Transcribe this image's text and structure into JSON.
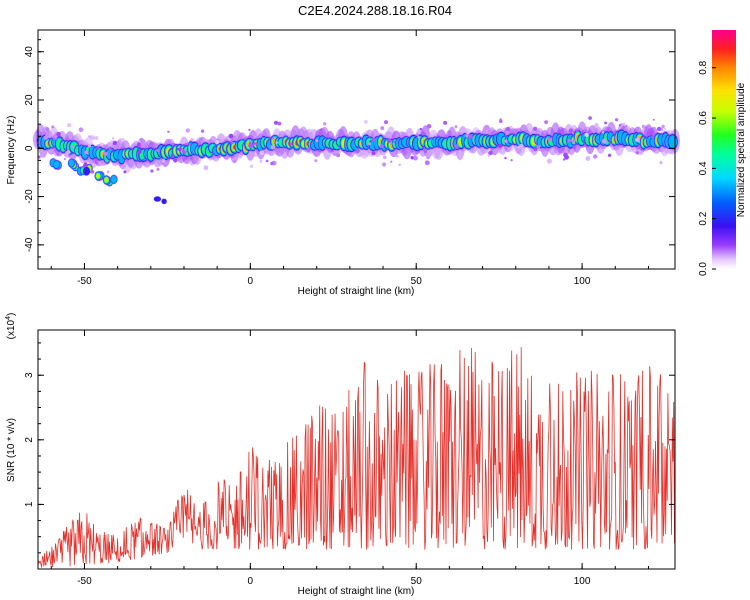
{
  "title": "C2E4.2024.288.18.16.R04",
  "chart_data": [
    {
      "type": "heatmap",
      "xlabel": "Height of straight line (km)",
      "ylabel": "Frequency (Hz)",
      "xlim": [
        -64,
        128
      ],
      "ylim": [
        -50,
        49
      ],
      "xticks": [
        -50,
        0,
        50,
        100
      ],
      "yticks": [
        -40,
        -20,
        0,
        20,
        40
      ],
      "colorbar": {
        "label": "Normalized spectral amplitude",
        "range": [
          0,
          0.95
        ],
        "ticks": [
          "0.0",
          "0.2",
          "0.4",
          "0.6",
          "0.8"
        ]
      },
      "ridge": {
        "description_points_km_hz": [
          [
            -63,
            3
          ],
          [
            -55,
            1
          ],
          [
            -50,
            -1
          ],
          [
            -45,
            -3
          ],
          [
            -40,
            -3
          ],
          [
            -30,
            -2
          ],
          [
            -20,
            -1
          ],
          [
            -10,
            -0.5
          ],
          [
            0,
            1
          ],
          [
            10,
            2.5
          ],
          [
            20,
            2
          ],
          [
            30,
            2
          ],
          [
            40,
            2
          ],
          [
            50,
            2
          ],
          [
            60,
            2.5
          ],
          [
            70,
            3
          ],
          [
            80,
            3.5
          ],
          [
            90,
            3
          ],
          [
            100,
            4
          ],
          [
            110,
            4
          ],
          [
            120,
            3
          ],
          [
            128,
            3
          ]
        ],
        "branch_points_km_hz": [
          [
            -58,
            -6
          ],
          [
            -54,
            -7
          ],
          [
            -50,
            -9
          ],
          [
            -46,
            -11
          ],
          [
            -42,
            -13
          ]
        ],
        "isolated_km_hz": [
          [
            -28,
            -21
          ]
        ]
      }
    },
    {
      "type": "line",
      "xlabel": "Height of straight line (km)",
      "ylabel": "SNR (10 * v/v)",
      "y_multiplier": "(x10",
      "y_multiplier_exp": "4",
      "y_multiplier_close": ")",
      "xlim": [
        -64,
        128
      ],
      "ylim": [
        0,
        3.7
      ],
      "xticks": [
        -50,
        0,
        50,
        100
      ],
      "yticks": [
        1,
        2,
        3
      ],
      "color": "#e8302a",
      "envelope_km_snr": [
        [
          -64,
          0.15
        ],
        [
          -58,
          0.45
        ],
        [
          -55,
          0.7
        ],
        [
          -50,
          1.0
        ],
        [
          -45,
          0.6
        ],
        [
          -40,
          0.5
        ],
        [
          -35,
          0.8
        ],
        [
          -30,
          0.8
        ],
        [
          -25,
          0.6
        ],
        [
          -20,
          1.4
        ],
        [
          -15,
          1.0
        ],
        [
          -10,
          1.4
        ],
        [
          -5,
          1.4
        ],
        [
          0,
          2.0
        ],
        [
          5,
          1.7
        ],
        [
          10,
          1.9
        ],
        [
          15,
          2.2
        ],
        [
          20,
          2.8
        ],
        [
          25,
          2.5
        ],
        [
          30,
          2.8
        ],
        [
          35,
          3.3
        ],
        [
          40,
          3.0
        ],
        [
          45,
          3.1
        ],
        [
          50,
          3.1
        ],
        [
          55,
          3.2
        ],
        [
          60,
          3.3
        ],
        [
          65,
          3.6
        ],
        [
          70,
          3.4
        ],
        [
          75,
          3.3
        ],
        [
          80,
          3.6
        ],
        [
          85,
          3.2
        ],
        [
          90,
          3.3
        ],
        [
          95,
          3.3
        ],
        [
          100,
          3.0
        ],
        [
          105,
          3.2
        ],
        [
          110,
          3.2
        ],
        [
          115,
          3.0
        ],
        [
          120,
          3.5
        ],
        [
          125,
          3.1
        ],
        [
          128,
          2.6
        ]
      ],
      "floor_km_snr": [
        [
          -64,
          0.0
        ],
        [
          -40,
          0.1
        ],
        [
          -20,
          0.3
        ],
        [
          0,
          0.3
        ],
        [
          20,
          0.3
        ],
        [
          40,
          0.3
        ],
        [
          60,
          0.3
        ],
        [
          80,
          0.3
        ],
        [
          100,
          0.3
        ],
        [
          128,
          0.3
        ]
      ]
    }
  ]
}
